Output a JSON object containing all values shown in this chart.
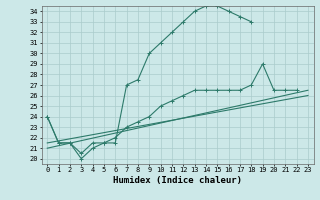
{
  "xlabel": "Humidex (Indice chaleur)",
  "xlim": [
    -0.5,
    23.5
  ],
  "ylim": [
    19.5,
    34.5
  ],
  "bg_color": "#cce8e8",
  "line_color": "#2d7a6a",
  "grid_color": "#aacccc",
  "curves": [
    {
      "x": [
        0,
        1,
        2,
        3,
        4,
        5,
        6,
        7,
        8,
        9,
        10,
        11,
        12,
        13,
        14,
        15,
        16,
        17,
        18
      ],
      "y": [
        24,
        21.5,
        21.5,
        20.0,
        21.0,
        21.5,
        21.5,
        27.0,
        27.5,
        30.0,
        31.0,
        32.0,
        33.0,
        34.0,
        34.5,
        34.5,
        34.0,
        33.5,
        33.0
      ]
    },
    {
      "x": [
        0,
        1,
        2,
        3,
        4,
        5,
        6,
        7,
        8,
        9,
        10,
        11,
        12,
        13,
        14,
        15,
        16,
        17,
        18,
        19,
        20,
        21,
        22
      ],
      "y": [
        24.0,
        21.5,
        21.5,
        20.5,
        21.5,
        21.5,
        22.0,
        23.0,
        23.5,
        24.0,
        25.0,
        25.5,
        26.0,
        26.5,
        26.5,
        26.5,
        26.5,
        26.5,
        27.0,
        29.0,
        26.5,
        26.5,
        26.5
      ]
    },
    {
      "x": [
        0,
        23
      ],
      "y": [
        21.0,
        26.5
      ]
    },
    {
      "x": [
        0,
        23
      ],
      "y": [
        21.5,
        26.0
      ]
    }
  ],
  "xticks": [
    0,
    1,
    2,
    3,
    4,
    5,
    6,
    7,
    8,
    9,
    10,
    11,
    12,
    13,
    14,
    15,
    16,
    17,
    18,
    19,
    20,
    21,
    22,
    23
  ],
  "yticks": [
    20,
    21,
    22,
    23,
    24,
    25,
    26,
    27,
    28,
    29,
    30,
    31,
    32,
    33,
    34
  ],
  "tick_fontsize": 5.0,
  "xlabel_fontsize": 6.5
}
